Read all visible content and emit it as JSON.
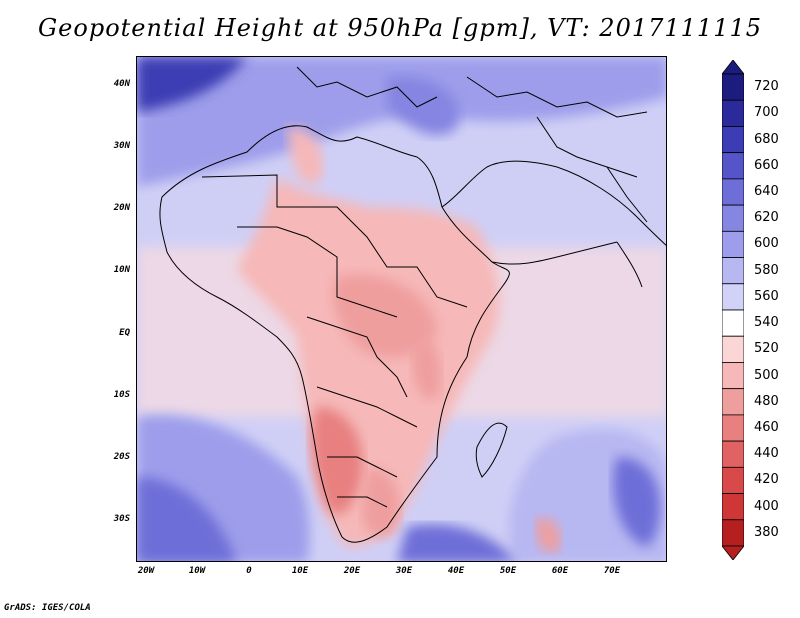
{
  "title": "Geopotential Height at 950hPa [gpm], VT: 2017111115",
  "footer": "GrADS: IGES/COLA",
  "map": {
    "region": "Africa",
    "longitude_range": [
      -25,
      80
    ],
    "latitude_range": [
      -37,
      45
    ],
    "lat_labels": [
      "40N",
      "30N",
      "20N",
      "10N",
      "EQ",
      "10S",
      "20S",
      "30S"
    ],
    "lon_labels": [
      "20W",
      "10W",
      "0",
      "10E",
      "20E",
      "30E",
      "40E",
      "50E",
      "60E",
      "70E"
    ]
  },
  "colorbar": {
    "levels": [
      "720",
      "700",
      "680",
      "660",
      "640",
      "620",
      "600",
      "580",
      "560",
      "540",
      "520",
      "500",
      "480",
      "460",
      "440",
      "420",
      "400",
      "380"
    ],
    "colors": [
      "#1c1c7e",
      "#2a2a9a",
      "#3c3cb4",
      "#5555c9",
      "#6e6ed8",
      "#8585e2",
      "#9d9deb",
      "#b7b7f2",
      "#d2d2f8",
      "#ffffff",
      "#fbd6d6",
      "#f6b8b8",
      "#ef9e9e",
      "#e88080",
      "#e06262",
      "#d84a4a",
      "#cf3636",
      "#b51f1f"
    ]
  }
}
